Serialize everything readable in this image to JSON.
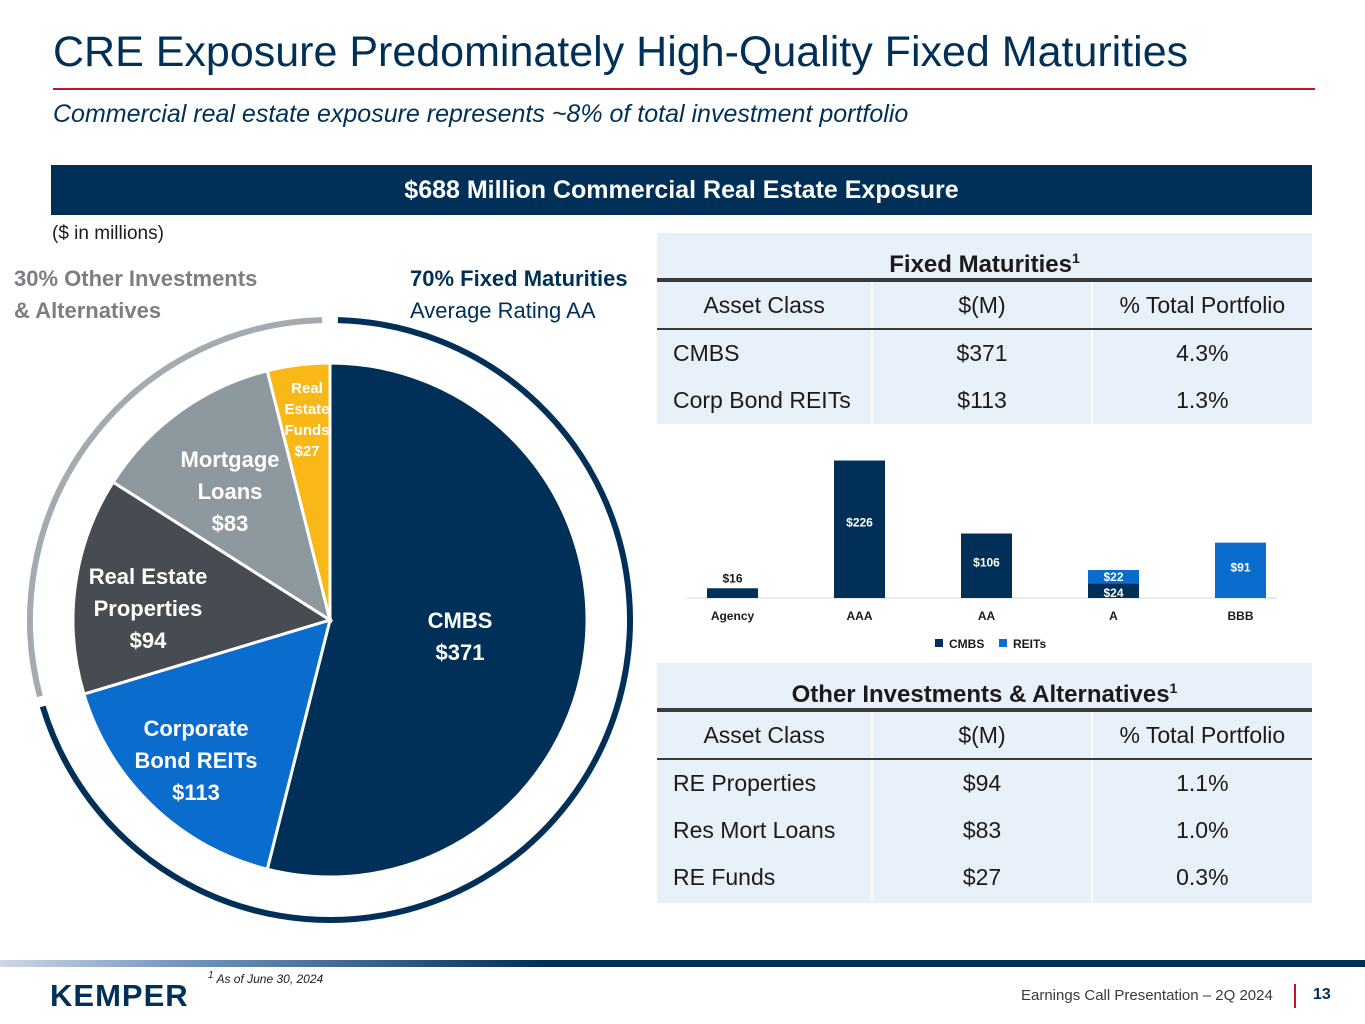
{
  "header": {
    "title": "CRE Exposure Predominately High-Quality Fixed Maturities",
    "subtitle": "Commercial real estate exposure represents ~8% of total investment portfolio",
    "banner": "$688 Million Commercial Real Estate Exposure",
    "units": "($ in millions)"
  },
  "pie_labels": {
    "other_line1": "30% Other Investments",
    "other_line2": "& Alternatives",
    "fixed_line1": "70% Fixed Maturities",
    "fixed_line2": "Average Rating AA"
  },
  "fixed_table": {
    "title": "Fixed Maturities",
    "sup": "1",
    "columns": [
      "Asset Class",
      "$(M)",
      "% Total Portfolio"
    ],
    "rows": [
      [
        "CMBS",
        "$371",
        "4.3%"
      ],
      [
        "Corp Bond REITs",
        "$113",
        "1.3%"
      ]
    ]
  },
  "other_table": {
    "title": "Other Investments & Alternatives",
    "sup": "1",
    "columns": [
      "Asset Class",
      "$(M)",
      "% Total Portfolio"
    ],
    "rows": [
      [
        "RE Properties",
        "$94",
        "1.1%"
      ],
      [
        "Res Mort Loans",
        "$83",
        "1.0%"
      ],
      [
        "RE Funds",
        "$27",
        "0.3%"
      ]
    ]
  },
  "footer": {
    "footnote": "As of June 30, 2024",
    "footnote_sup": "1",
    "logo": "KEMPER",
    "presentation": "Earnings Call Presentation – 2Q 2024",
    "page": "13"
  },
  "colors": {
    "navy": "#003057",
    "blue": "#0a6ccc",
    "dark_gray": "#464c52",
    "gray": "#8e989f",
    "gold": "#f9b818",
    "ring_gray": "#a3abb1"
  },
  "chart_data": [
    {
      "type": "pie",
      "title": "$688 Million Commercial Real Estate Exposure",
      "slices": [
        {
          "name": "CMBS",
          "value": 371,
          "label_lines": [
            "CMBS",
            "$371"
          ],
          "color": "#003057"
        },
        {
          "name": "Corporate Bond REITs",
          "value": 113,
          "label_lines": [
            "Corporate",
            "Bond REITs",
            "$113"
          ],
          "color": "#0a6ccc"
        },
        {
          "name": "Real Estate Properties",
          "value": 94,
          "label_lines": [
            "Real Estate",
            "Properties",
            "$94"
          ],
          "color": "#464c52"
        },
        {
          "name": "Mortgage Loans",
          "value": 83,
          "label_lines": [
            "Mortgage",
            "Loans",
            "$83"
          ],
          "color": "#8e989f"
        },
        {
          "name": "Real Estate Funds",
          "value": 27,
          "label_lines": [
            "Real",
            "Estate",
            "Funds",
            "$27"
          ],
          "color": "#f9b818"
        }
      ],
      "groups": [
        {
          "name": "Fixed Maturities",
          "share": "70%",
          "members": [
            "CMBS",
            "Corporate Bond REITs"
          ]
        },
        {
          "name": "Other Investments & Alternatives",
          "share": "30%",
          "members": [
            "Real Estate Properties",
            "Mortgage Loans",
            "Real Estate Funds"
          ]
        }
      ]
    },
    {
      "type": "bar",
      "stacked": true,
      "categories": [
        "Agency",
        "AAA",
        "AA",
        "A",
        "BBB"
      ],
      "series": [
        {
          "name": "CMBS",
          "color": "#003057",
          "values": [
            16,
            226,
            106,
            24,
            0
          ]
        },
        {
          "name": "REITs",
          "color": "#0a6ccc",
          "values": [
            0,
            0,
            0,
            22,
            91
          ]
        }
      ],
      "data_labels": [
        {
          "category": "Agency",
          "series": "CMBS",
          "text": "$16"
        },
        {
          "category": "AAA",
          "series": "CMBS",
          "text": "$226"
        },
        {
          "category": "AA",
          "series": "CMBS",
          "text": "$106"
        },
        {
          "category": "A",
          "series": "CMBS",
          "text": "$24"
        },
        {
          "category": "A",
          "series": "REITs",
          "text": "$22"
        },
        {
          "category": "BBB",
          "series": "REITs",
          "text": "$91"
        }
      ],
      "legend": "bottom",
      "ylim": [
        0,
        240
      ]
    }
  ]
}
